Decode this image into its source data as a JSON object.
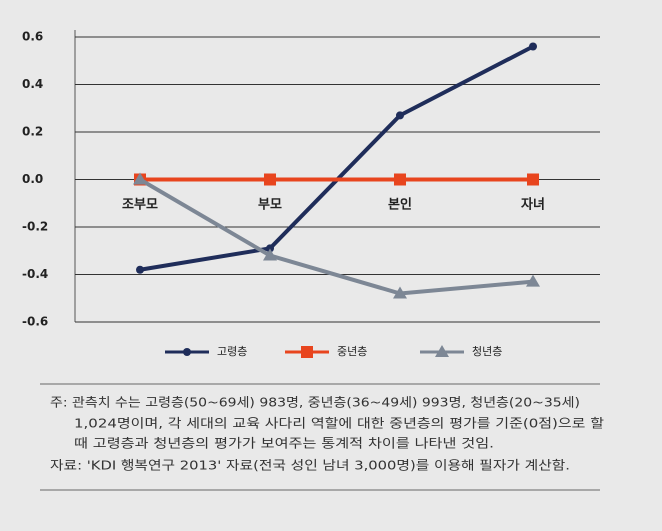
{
  "chart_data": {
    "type": "line",
    "categories": [
      "조부모",
      "부모",
      "본인",
      "자녀"
    ],
    "series": [
      {
        "name": "고령층",
        "color": "#1f2d5a",
        "marker": "circle",
        "values": [
          -0.38,
          -0.29,
          0.27,
          0.56
        ]
      },
      {
        "name": "중년층",
        "color": "#e8451e",
        "marker": "square",
        "values": [
          0,
          0,
          0,
          0
        ]
      },
      {
        "name": "청년층",
        "color": "#7d8795",
        "marker": "triangle",
        "values": [
          0,
          -0.32,
          -0.48,
          -0.43
        ]
      }
    ],
    "ylim": [
      -0.6,
      0.6
    ],
    "yticks": [
      0.6,
      0.4,
      0.2,
      {
        "value": 0,
        "label": "0.0"
      },
      -0.2,
      -0.4,
      -0.6
    ],
    "grid": true,
    "legend": "bottom",
    "notes": [
      "주: 관측치 수는 고령층(50~69세) 983명, 중년층(36~49세) 993명, 청년층(20~35세)",
      "1,024명이며, 각 세대의 교육 사다리 역할에 대한 중년층의 평가를 기준(0점)으로 할",
      "때 고령층과 청년층의 평가가 보여주는 통계적 차이를 나타낸 것임.",
      "자료: 'KDI 행복연구 2013' 자료(전국 성인 남녀 3,000명)를 이용해 필자가 계산함."
    ]
  }
}
